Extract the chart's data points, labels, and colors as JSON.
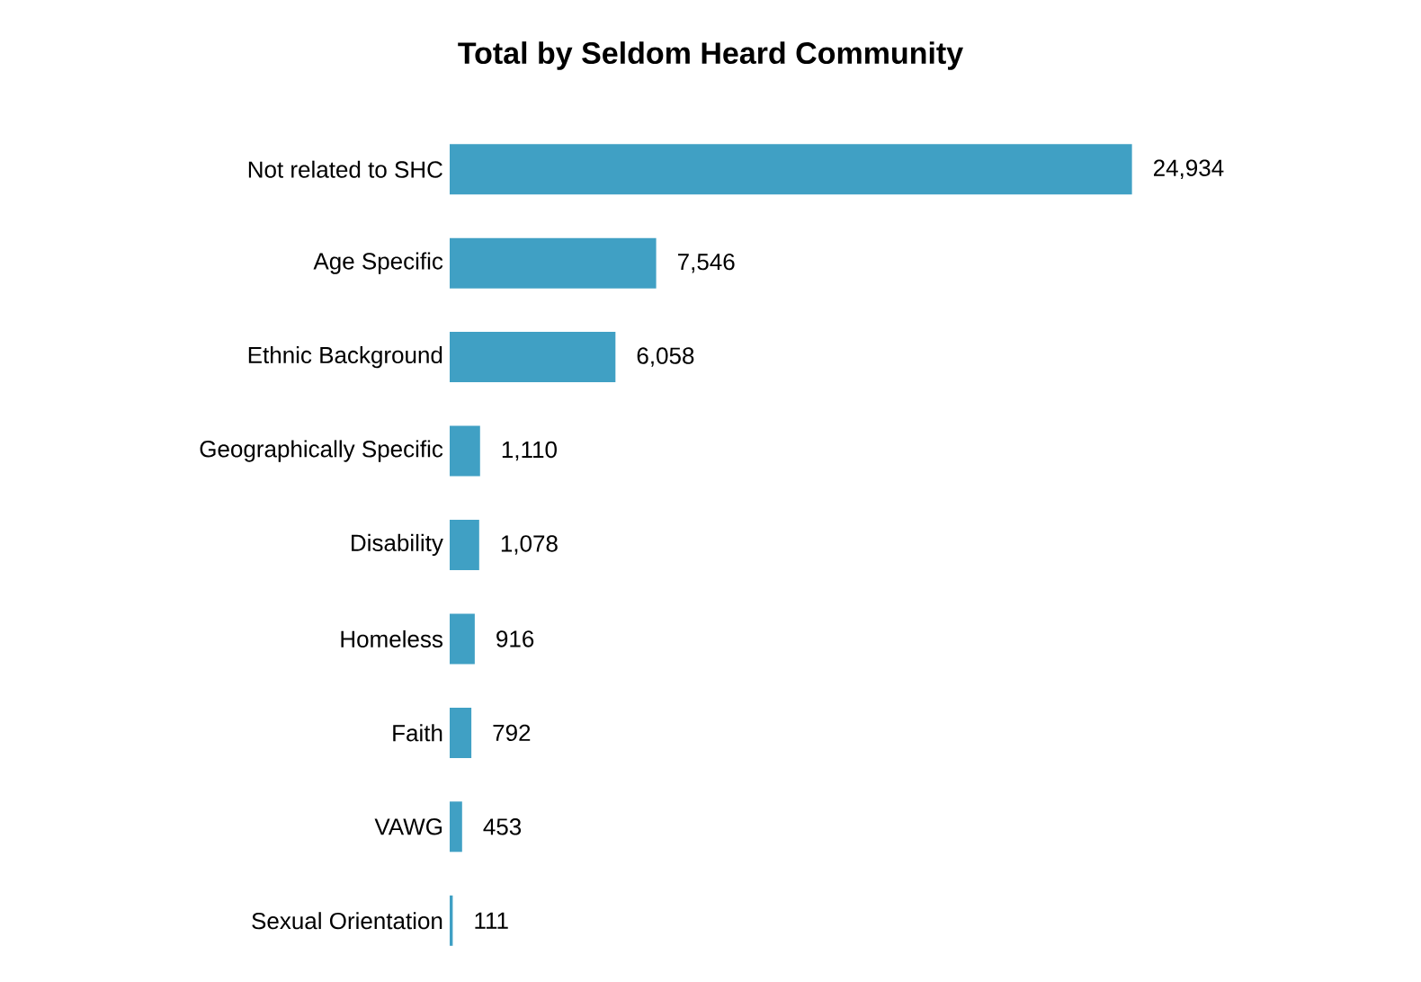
{
  "chart_data": {
    "type": "bar",
    "orientation": "horizontal",
    "title": "Total by Seldom Heard Community",
    "categories": [
      "Not related to SHC",
      "Age Specific",
      "Ethnic Background",
      "Geographically Specific",
      "Disability",
      "Homeless",
      "Faith",
      "VAWG",
      "Sexual Orientation"
    ],
    "values": [
      24934,
      7546,
      6058,
      1110,
      1078,
      916,
      792,
      453,
      111
    ],
    "value_labels": [
      "24,934",
      "7,546",
      "6,058",
      "1,110",
      "1,078",
      "916",
      "792",
      "453",
      "111"
    ],
    "color": "#40a0c4"
  }
}
